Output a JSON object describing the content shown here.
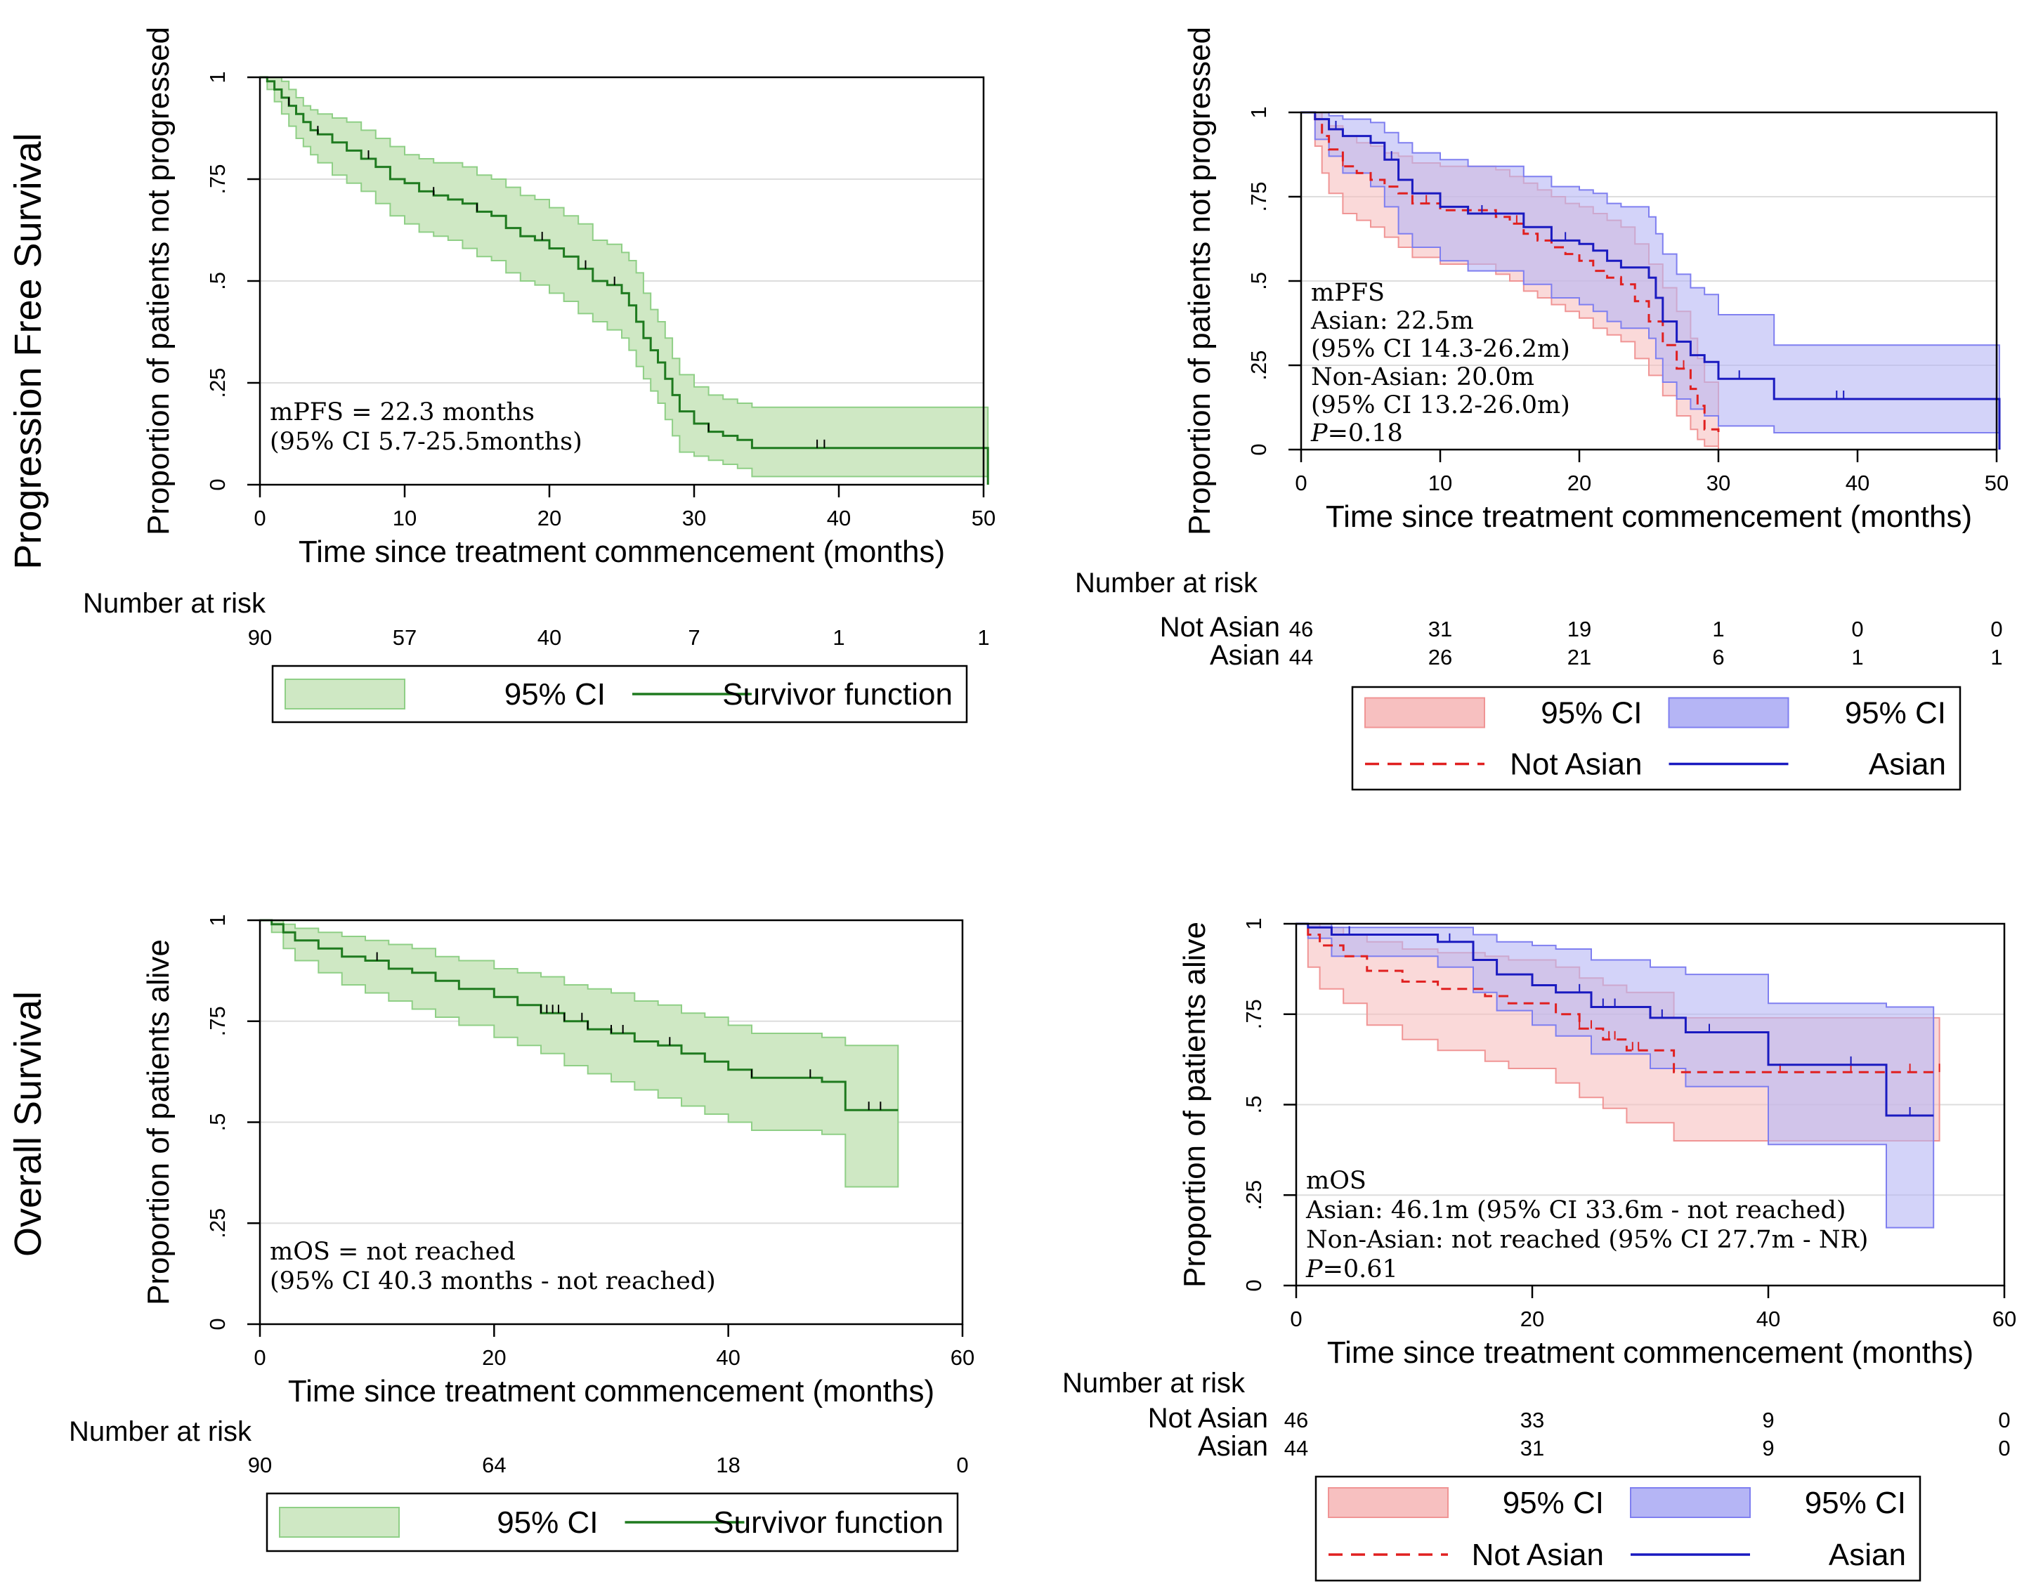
{
  "row_titles": {
    "pfs": "Progression Free Survival",
    "os": "Overall Survival"
  },
  "colors": {
    "single_line": "#1f7a1f",
    "single_ci_fill": "#cfe8c4",
    "single_ci_edge": "#8fcf86",
    "asian_line": "#1a1ac0",
    "asian_ci_fill": "#b5b5f5",
    "asian_ci_edge": "#7f7ff0",
    "nonasian_line": "#e02020",
    "nonasian_ci_fill": "#f7c0c0",
    "nonasian_ci_edge": "#f09595",
    "grid": "#dddddd",
    "axis": "#000000"
  },
  "chart_data": [
    {
      "id": "pfs_all",
      "type": "line",
      "ylabel": "Proportion of patients not progressed",
      "xlabel": "Time since treatment commencement (months)",
      "xlim": [
        0,
        50
      ],
      "ylim": [
        0,
        1
      ],
      "xticks": [
        "0",
        "10",
        "20",
        "30",
        "40",
        "50"
      ],
      "yticks": [
        "0",
        ".25",
        ".5",
        ".75",
        "1"
      ],
      "annotation": [
        "mPFS = 22.3 months",
        "(95% CI 5.7-25.5months)"
      ],
      "risk": {
        "title": "Number at risk",
        "rows": [
          {
            "label": "",
            "values": [
              "90",
              "57",
              "40",
              "7",
              "1",
              "1"
            ]
          }
        ]
      },
      "legend": [
        {
          "label": "95% CI",
          "kind": "ci_single"
        },
        {
          "label": "Survivor function",
          "kind": "line_single"
        }
      ],
      "series": [
        {
          "name": "Survivor function",
          "x": [
            0,
            0.5,
            1,
            1.5,
            2,
            2.5,
            3,
            3.5,
            4,
            5,
            6,
            7,
            8,
            9,
            10,
            11,
            12,
            13,
            14,
            15,
            16,
            17,
            18,
            19,
            20,
            21,
            22,
            23,
            24,
            25,
            25.5,
            26,
            26.5,
            27,
            27.5,
            28,
            28.5,
            29,
            30,
            31,
            32,
            33,
            34,
            40,
            50,
            50.3
          ],
          "y": [
            1,
            0.99,
            0.97,
            0.95,
            0.93,
            0.91,
            0.89,
            0.87,
            0.86,
            0.84,
            0.82,
            0.8,
            0.78,
            0.75,
            0.74,
            0.72,
            0.71,
            0.7,
            0.69,
            0.67,
            0.66,
            0.63,
            0.61,
            0.6,
            0.58,
            0.56,
            0.53,
            0.5,
            0.49,
            0.47,
            0.44,
            0.4,
            0.36,
            0.33,
            0.3,
            0.26,
            0.22,
            0.18,
            0.15,
            0.13,
            0.12,
            0.11,
            0.09,
            0.09,
            0.09,
            0.0
          ],
          "ci_lower": [
            1,
            0.97,
            0.94,
            0.91,
            0.88,
            0.85,
            0.83,
            0.81,
            0.79,
            0.76,
            0.74,
            0.72,
            0.69,
            0.66,
            0.64,
            0.62,
            0.61,
            0.6,
            0.58,
            0.56,
            0.55,
            0.52,
            0.5,
            0.49,
            0.47,
            0.45,
            0.42,
            0.4,
            0.38,
            0.36,
            0.33,
            0.29,
            0.26,
            0.23,
            0.2,
            0.16,
            0.12,
            0.08,
            0.07,
            0.06,
            0.05,
            0.04,
            0.02,
            0.02,
            0.02,
            0.02
          ],
          "ci_upper": [
            1,
            1,
            1,
            0.99,
            0.97,
            0.95,
            0.93,
            0.92,
            0.91,
            0.9,
            0.89,
            0.87,
            0.85,
            0.83,
            0.81,
            0.8,
            0.79,
            0.79,
            0.78,
            0.76,
            0.75,
            0.73,
            0.71,
            0.7,
            0.68,
            0.66,
            0.64,
            0.6,
            0.59,
            0.57,
            0.55,
            0.52,
            0.47,
            0.43,
            0.4,
            0.36,
            0.31,
            0.27,
            0.24,
            0.22,
            0.21,
            0.2,
            0.19,
            0.19,
            0.19,
            0.19
          ],
          "censor_x": [
            2,
            4,
            7.5,
            12,
            15,
            19.5,
            22.5,
            24.5,
            31,
            38.5,
            39
          ]
        }
      ]
    },
    {
      "id": "pfs_eth",
      "type": "line",
      "ylabel": "Proportion of patients not progressed",
      "xlabel": "Time since treatment commencement (months)",
      "xlim": [
        0,
        50
      ],
      "ylim": [
        0,
        1
      ],
      "xticks": [
        "0",
        "10",
        "20",
        "30",
        "40",
        "50"
      ],
      "yticks": [
        "0",
        ".25",
        ".5",
        ".75",
        "1"
      ],
      "annotation": [
        "mPFS",
        "Asian: 22.5m",
        "(95% CI 14.3-26.2m)",
        "Non-Asian: 20.0m",
        "(95% CI 13.2-26.0m)",
        "P=0.18"
      ],
      "risk": {
        "title": "Number at risk",
        "rows": [
          {
            "label": "Not Asian",
            "values": [
              "46",
              "31",
              "19",
              "1",
              "0",
              "0"
            ]
          },
          {
            "label": "Asian",
            "values": [
              "44",
              "26",
              "21",
              "6",
              "1",
              "1"
            ]
          }
        ]
      },
      "legend": [
        {
          "label": "95% CI",
          "kind": "ci_nonasian"
        },
        {
          "label": "95% CI",
          "kind": "ci_asian"
        },
        {
          "label": "Not Asian",
          "kind": "line_nonasian"
        },
        {
          "label": "Asian",
          "kind": "line_asian"
        }
      ],
      "series": [
        {
          "name": "Not Asian",
          "x": [
            0,
            1,
            1.5,
            2,
            3,
            4,
            5,
            6,
            7,
            8,
            10,
            12,
            14,
            15,
            16,
            17,
            18,
            19,
            20,
            21,
            22,
            23,
            24,
            25,
            26,
            27,
            28,
            28.5,
            29,
            30
          ],
          "y": [
            1,
            0.98,
            0.93,
            0.89,
            0.84,
            0.82,
            0.8,
            0.78,
            0.76,
            0.73,
            0.71,
            0.71,
            0.69,
            0.67,
            0.64,
            0.62,
            0.6,
            0.58,
            0.56,
            0.53,
            0.51,
            0.49,
            0.44,
            0.38,
            0.31,
            0.24,
            0.18,
            0.13,
            0.06,
            0.04
          ],
          "ci_lower": [
            1,
            0.9,
            0.82,
            0.76,
            0.7,
            0.68,
            0.66,
            0.63,
            0.6,
            0.57,
            0.55,
            0.55,
            0.52,
            0.5,
            0.47,
            0.45,
            0.43,
            0.41,
            0.39,
            0.36,
            0.34,
            0.32,
            0.27,
            0.22,
            0.16,
            0.1,
            0.06,
            0.03,
            0.01,
            0.0
          ],
          "ci_upper": [
            1,
            1,
            0.98,
            0.96,
            0.93,
            0.91,
            0.9,
            0.88,
            0.87,
            0.85,
            0.84,
            0.84,
            0.83,
            0.81,
            0.79,
            0.77,
            0.75,
            0.73,
            0.72,
            0.7,
            0.68,
            0.66,
            0.61,
            0.55,
            0.48,
            0.41,
            0.33,
            0.27,
            0.2,
            0.17
          ],
          "censor_x": [
            3,
            9,
            15.5,
            23,
            27.5
          ]
        },
        {
          "name": "Asian",
          "x": [
            0,
            1,
            2,
            3,
            5,
            6,
            7,
            8,
            10,
            12,
            14,
            16,
            18,
            20,
            21,
            22,
            23,
            24,
            25,
            25.5,
            26,
            27,
            28,
            29,
            30,
            34,
            40,
            50,
            50.2
          ],
          "y": [
            1,
            0.98,
            0.95,
            0.93,
            0.91,
            0.86,
            0.8,
            0.76,
            0.72,
            0.7,
            0.7,
            0.66,
            0.62,
            0.61,
            0.59,
            0.56,
            0.54,
            0.54,
            0.51,
            0.45,
            0.38,
            0.32,
            0.28,
            0.26,
            0.21,
            0.15,
            0.15,
            0.15,
            0.0
          ],
          "ci_lower": [
            1,
            0.92,
            0.87,
            0.82,
            0.78,
            0.72,
            0.64,
            0.6,
            0.56,
            0.53,
            0.53,
            0.49,
            0.45,
            0.43,
            0.41,
            0.38,
            0.36,
            0.36,
            0.33,
            0.27,
            0.2,
            0.15,
            0.12,
            0.1,
            0.07,
            0.05,
            0.05,
            0.05,
            0.05
          ],
          "ci_upper": [
            1,
            1,
            0.99,
            0.98,
            0.97,
            0.94,
            0.91,
            0.88,
            0.86,
            0.84,
            0.84,
            0.81,
            0.78,
            0.77,
            0.76,
            0.73,
            0.72,
            0.72,
            0.69,
            0.64,
            0.58,
            0.52,
            0.48,
            0.46,
            0.4,
            0.31,
            0.31,
            0.31,
            0.31
          ],
          "censor_x": [
            2.5,
            6.5,
            13,
            19,
            31.5,
            38.5,
            39
          ]
        }
      ]
    },
    {
      "id": "os_all",
      "type": "line",
      "ylabel": "Proportion of patients alive",
      "xlabel": "Time since treatment commencement (months)",
      "xlim": [
        0,
        60
      ],
      "ylim": [
        0,
        1
      ],
      "xticks": [
        "0",
        "20",
        "40",
        "60"
      ],
      "yticks": [
        "0",
        ".25",
        ".5",
        ".75",
        "1"
      ],
      "annotation": [
        "mOS = not reached",
        "(95% CI 40.3 months - not reached)"
      ],
      "risk": {
        "title": "Number at risk",
        "rows": [
          {
            "label": "",
            "values": [
              "90",
              "64",
              "18",
              "0"
            ]
          }
        ]
      },
      "legend": [
        {
          "label": "95% CI",
          "kind": "ci_single"
        },
        {
          "label": "Survivor function",
          "kind": "line_single"
        }
      ],
      "series": [
        {
          "name": "Survivor function",
          "x": [
            0,
            1,
            2,
            3,
            5,
            7,
            9,
            11,
            13,
            15,
            17,
            20,
            22,
            24,
            26,
            28,
            30,
            32,
            34,
            36,
            38,
            40,
            42,
            48,
            50,
            54.5
          ],
          "y": [
            1,
            0.99,
            0.97,
            0.95,
            0.93,
            0.91,
            0.9,
            0.88,
            0.87,
            0.85,
            0.83,
            0.81,
            0.79,
            0.77,
            0.75,
            0.73,
            0.72,
            0.7,
            0.69,
            0.67,
            0.65,
            0.63,
            0.61,
            0.6,
            0.53,
            0.53
          ],
          "ci_lower": [
            1,
            0.97,
            0.93,
            0.9,
            0.87,
            0.84,
            0.82,
            0.8,
            0.78,
            0.76,
            0.74,
            0.71,
            0.69,
            0.67,
            0.64,
            0.62,
            0.6,
            0.58,
            0.56,
            0.54,
            0.52,
            0.5,
            0.48,
            0.47,
            0.34,
            0.34
          ],
          "ci_upper": [
            1,
            1,
            0.99,
            0.98,
            0.97,
            0.96,
            0.95,
            0.94,
            0.93,
            0.91,
            0.9,
            0.88,
            0.87,
            0.86,
            0.84,
            0.83,
            0.82,
            0.8,
            0.79,
            0.77,
            0.76,
            0.74,
            0.72,
            0.71,
            0.69,
            0.69
          ],
          "censor_x": [
            10,
            24,
            24.5,
            25,
            25.5,
            26,
            27.5,
            28,
            30,
            31,
            35,
            42,
            47,
            52,
            53
          ]
        }
      ]
    },
    {
      "id": "os_eth",
      "type": "line",
      "ylabel": "Proportion of patients alive",
      "xlabel": "Time since treatment commencement (months)",
      "xlim": [
        0,
        60
      ],
      "ylim": [
        0,
        1
      ],
      "xticks": [
        "0",
        "20",
        "40",
        "60"
      ],
      "yticks": [
        "0",
        ".25",
        ".5",
        ".75",
        "1"
      ],
      "annotation": [
        "mOS",
        "Asian: 46.1m (95% CI 33.6m - not reached)",
        "Non-Asian: not reached (95% CI 27.7m - NR)",
        "P=0.61"
      ],
      "risk": {
        "title": "Number at risk",
        "rows": [
          {
            "label": "Not Asian",
            "values": [
              "46",
              "33",
              "9",
              "0"
            ]
          },
          {
            "label": "Asian",
            "values": [
              "44",
              "31",
              "9",
              "0"
            ]
          }
        ]
      },
      "legend": [
        {
          "label": "95% CI",
          "kind": "ci_nonasian"
        },
        {
          "label": "95% CI",
          "kind": "ci_asian"
        },
        {
          "label": "Not Asian",
          "kind": "line_nonasian"
        },
        {
          "label": "Asian",
          "kind": "line_asian"
        }
      ],
      "series": [
        {
          "name": "Not Asian",
          "x": [
            0,
            1,
            2,
            4,
            6,
            9,
            12,
            16,
            18,
            22,
            24,
            26,
            28,
            32,
            40,
            50,
            54.5
          ],
          "y": [
            1,
            0.97,
            0.94,
            0.91,
            0.87,
            0.84,
            0.82,
            0.8,
            0.78,
            0.75,
            0.71,
            0.68,
            0.65,
            0.59,
            0.59,
            0.59,
            0.59
          ],
          "ci_lower": [
            1,
            0.88,
            0.82,
            0.78,
            0.72,
            0.68,
            0.65,
            0.62,
            0.6,
            0.56,
            0.52,
            0.49,
            0.45,
            0.4,
            0.4,
            0.4,
            0.4
          ],
          "ci_upper": [
            1,
            1,
            0.99,
            0.97,
            0.95,
            0.93,
            0.92,
            0.91,
            0.9,
            0.88,
            0.85,
            0.83,
            0.81,
            0.74,
            0.74,
            0.74,
            0.74
          ],
          "censor_x": [
            24,
            25,
            26.5,
            27,
            28.5,
            29,
            41,
            47,
            52,
            54.5
          ]
        },
        {
          "name": "Asian",
          "x": [
            0,
            1,
            3,
            7,
            12,
            15,
            17,
            20,
            22,
            25,
            30,
            33,
            40,
            50,
            54
          ],
          "y": [
            1,
            0.99,
            0.97,
            0.97,
            0.95,
            0.9,
            0.86,
            0.83,
            0.81,
            0.77,
            0.74,
            0.7,
            0.61,
            0.47,
            0.47
          ],
          "ci_lower": [
            1,
            0.96,
            0.91,
            0.91,
            0.88,
            0.81,
            0.76,
            0.72,
            0.69,
            0.64,
            0.6,
            0.55,
            0.39,
            0.16,
            0.16
          ],
          "ci_upper": [
            1,
            1,
            0.99,
            0.99,
            0.99,
            0.97,
            0.95,
            0.94,
            0.93,
            0.9,
            0.88,
            0.86,
            0.78,
            0.77,
            0.77
          ],
          "censor_x": [
            4.5,
            13,
            24,
            26,
            27,
            31,
            35,
            47,
            52
          ]
        }
      ]
    }
  ]
}
